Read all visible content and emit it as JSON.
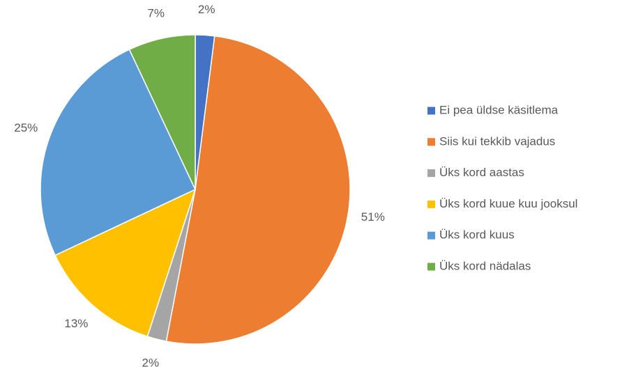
{
  "chart_data": {
    "type": "pie",
    "categories": [
      "Ei pea üldse käsitlema",
      "Siis kui tekkib vajadus",
      "Üks kord aastas",
      "Üks kord kuue kuu jooksul",
      "Üks kord kuus",
      "Üks kord nädalas"
    ],
    "values": [
      2,
      51,
      2,
      13,
      25,
      7
    ],
    "value_labels": [
      "2%",
      "51%",
      "2%",
      "13%",
      "25%",
      "7%"
    ],
    "colors": [
      "#4472c4",
      "#ed7d31",
      "#a5a5a5",
      "#ffc000",
      "#5b9bd5",
      "#70ad47"
    ],
    "legend": "right"
  }
}
